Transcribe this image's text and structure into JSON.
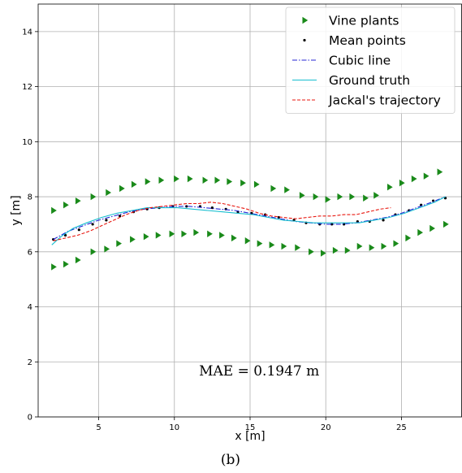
{
  "chart_data": {
    "type": "scatter",
    "xlabel": "x [m]",
    "ylabel": "y [m]",
    "xlim": [
      1.0,
      29.0
    ],
    "ylim": [
      0,
      15
    ],
    "xticks": [
      0,
      5,
      10,
      15,
      20,
      25
    ],
    "yticks": [
      0,
      2,
      4,
      6,
      8,
      10,
      12,
      14
    ],
    "grid": true,
    "legend_position": "top-right",
    "annotation": "MAE = 0.1947 m",
    "caption": "(b)",
    "series": [
      {
        "name": "Vine plants",
        "kind": "marker",
        "marker": "tri-right",
        "color": "#1a8a1a",
        "points": [
          [
            2.0,
            7.5
          ],
          [
            2.8,
            7.7
          ],
          [
            3.6,
            7.85
          ],
          [
            4.6,
            8.0
          ],
          [
            5.6,
            8.15
          ],
          [
            6.5,
            8.3
          ],
          [
            7.3,
            8.45
          ],
          [
            8.2,
            8.55
          ],
          [
            9.1,
            8.6
          ],
          [
            10.1,
            8.65
          ],
          [
            11.0,
            8.65
          ],
          [
            12.0,
            8.6
          ],
          [
            12.8,
            8.6
          ],
          [
            13.6,
            8.55
          ],
          [
            14.5,
            8.5
          ],
          [
            15.4,
            8.45
          ],
          [
            16.5,
            8.3
          ],
          [
            17.4,
            8.25
          ],
          [
            18.4,
            8.05
          ],
          [
            19.3,
            8.0
          ],
          [
            20.1,
            7.9
          ],
          [
            20.9,
            8.0
          ],
          [
            21.7,
            8.0
          ],
          [
            22.6,
            7.95
          ],
          [
            23.3,
            8.05
          ],
          [
            24.2,
            8.35
          ],
          [
            25.0,
            8.5
          ],
          [
            25.8,
            8.65
          ],
          [
            26.6,
            8.75
          ],
          [
            27.5,
            8.9
          ],
          [
            2.0,
            5.45
          ],
          [
            2.8,
            5.55
          ],
          [
            3.6,
            5.7
          ],
          [
            4.6,
            6.0
          ],
          [
            5.5,
            6.1
          ],
          [
            6.3,
            6.3
          ],
          [
            7.2,
            6.45
          ],
          [
            8.1,
            6.55
          ],
          [
            8.9,
            6.6
          ],
          [
            9.8,
            6.65
          ],
          [
            10.6,
            6.65
          ],
          [
            11.4,
            6.7
          ],
          [
            12.3,
            6.65
          ],
          [
            13.1,
            6.6
          ],
          [
            13.9,
            6.5
          ],
          [
            14.8,
            6.4
          ],
          [
            15.6,
            6.3
          ],
          [
            16.4,
            6.25
          ],
          [
            17.2,
            6.2
          ],
          [
            18.1,
            6.15
          ],
          [
            19.0,
            6.0
          ],
          [
            19.8,
            5.95
          ],
          [
            20.6,
            6.05
          ],
          [
            21.4,
            6.05
          ],
          [
            22.2,
            6.2
          ],
          [
            23.0,
            6.15
          ],
          [
            23.8,
            6.2
          ],
          [
            24.6,
            6.3
          ],
          [
            25.4,
            6.5
          ],
          [
            26.2,
            6.7
          ],
          [
            27.0,
            6.85
          ],
          [
            27.9,
            7.0
          ]
        ]
      },
      {
        "name": "Mean points",
        "kind": "marker",
        "marker": "dot",
        "color": "#000000",
        "points": [
          [
            2.0,
            6.45
          ],
          [
            2.8,
            6.6
          ],
          [
            3.7,
            6.8
          ],
          [
            4.6,
            7.0
          ],
          [
            5.5,
            7.15
          ],
          [
            6.4,
            7.3
          ],
          [
            7.3,
            7.45
          ],
          [
            8.2,
            7.55
          ],
          [
            9.0,
            7.6
          ],
          [
            9.9,
            7.65
          ],
          [
            10.8,
            7.65
          ],
          [
            11.7,
            7.65
          ],
          [
            12.5,
            7.6
          ],
          [
            13.4,
            7.55
          ],
          [
            14.2,
            7.45
          ],
          [
            15.1,
            7.4
          ],
          [
            16.0,
            7.35
          ],
          [
            16.9,
            7.25
          ],
          [
            17.9,
            7.15
          ],
          [
            18.7,
            7.05
          ],
          [
            19.6,
            7.0
          ],
          [
            20.4,
            7.0
          ],
          [
            21.2,
            7.0
          ],
          [
            22.1,
            7.1
          ],
          [
            22.9,
            7.1
          ],
          [
            23.8,
            7.15
          ],
          [
            24.6,
            7.35
          ],
          [
            25.5,
            7.5
          ],
          [
            26.3,
            7.7
          ],
          [
            27.1,
            7.85
          ],
          [
            27.9,
            7.95
          ]
        ]
      },
      {
        "name": "Cubic line",
        "kind": "line",
        "style": "dashdot",
        "color": "#2424d6",
        "points": [
          [
            2.0,
            6.45
          ],
          [
            3.0,
            6.75
          ],
          [
            4.0,
            6.95
          ],
          [
            5.0,
            7.15
          ],
          [
            6.0,
            7.3
          ],
          [
            7.0,
            7.45
          ],
          [
            8.0,
            7.55
          ],
          [
            9.0,
            7.6
          ],
          [
            10.0,
            7.65
          ],
          [
            11.0,
            7.65
          ],
          [
            12.0,
            7.6
          ],
          [
            13.0,
            7.55
          ],
          [
            14.0,
            7.5
          ],
          [
            15.0,
            7.4
          ],
          [
            16.0,
            7.3
          ],
          [
            17.0,
            7.2
          ],
          [
            18.0,
            7.1
          ],
          [
            19.0,
            7.05
          ],
          [
            20.0,
            7.0
          ],
          [
            21.0,
            7.0
          ],
          [
            22.0,
            7.05
          ],
          [
            23.0,
            7.15
          ],
          [
            24.0,
            7.25
          ],
          [
            25.0,
            7.4
          ],
          [
            26.0,
            7.6
          ],
          [
            27.0,
            7.8
          ],
          [
            27.9,
            8.0
          ]
        ]
      },
      {
        "name": "Ground truth",
        "kind": "line",
        "style": "solid",
        "color": "#17becf",
        "points": [
          [
            1.9,
            6.25
          ],
          [
            2.5,
            6.55
          ],
          [
            3.3,
            6.85
          ],
          [
            4.2,
            7.05
          ],
          [
            5.2,
            7.25
          ],
          [
            6.2,
            7.4
          ],
          [
            7.2,
            7.5
          ],
          [
            8.2,
            7.6
          ],
          [
            9.2,
            7.6
          ],
          [
            10.2,
            7.6
          ],
          [
            11.2,
            7.55
          ],
          [
            12.2,
            7.5
          ],
          [
            13.2,
            7.45
          ],
          [
            14.2,
            7.4
          ],
          [
            15.2,
            7.35
          ],
          [
            16.2,
            7.25
          ],
          [
            17.2,
            7.15
          ],
          [
            18.2,
            7.1
          ],
          [
            19.2,
            7.05
          ],
          [
            20.2,
            7.05
          ],
          [
            21.2,
            7.05
          ],
          [
            22.2,
            7.05
          ],
          [
            23.2,
            7.15
          ],
          [
            24.2,
            7.25
          ],
          [
            25.2,
            7.4
          ],
          [
            26.2,
            7.6
          ],
          [
            27.2,
            7.8
          ],
          [
            27.9,
            8.0
          ]
        ]
      },
      {
        "name": "Jackal's trajectory",
        "kind": "line",
        "style": "dashed",
        "color": "#e8170f",
        "points": [
          [
            2.0,
            6.4
          ],
          [
            2.8,
            6.5
          ],
          [
            3.6,
            6.6
          ],
          [
            4.4,
            6.75
          ],
          [
            5.2,
            6.95
          ],
          [
            6.0,
            7.15
          ],
          [
            6.8,
            7.35
          ],
          [
            7.6,
            7.5
          ],
          [
            8.4,
            7.6
          ],
          [
            9.2,
            7.65
          ],
          [
            10.0,
            7.7
          ],
          [
            10.8,
            7.75
          ],
          [
            11.6,
            7.75
          ],
          [
            12.4,
            7.8
          ],
          [
            13.2,
            7.75
          ],
          [
            14.0,
            7.65
          ],
          [
            14.8,
            7.55
          ],
          [
            15.6,
            7.4
          ],
          [
            16.4,
            7.3
          ],
          [
            17.2,
            7.25
          ],
          [
            18.0,
            7.2
          ],
          [
            18.8,
            7.25
          ],
          [
            19.6,
            7.3
          ],
          [
            20.4,
            7.3
          ],
          [
            21.2,
            7.35
          ],
          [
            22.0,
            7.35
          ],
          [
            22.8,
            7.45
          ],
          [
            23.6,
            7.55
          ],
          [
            24.3,
            7.6
          ]
        ]
      }
    ]
  }
}
